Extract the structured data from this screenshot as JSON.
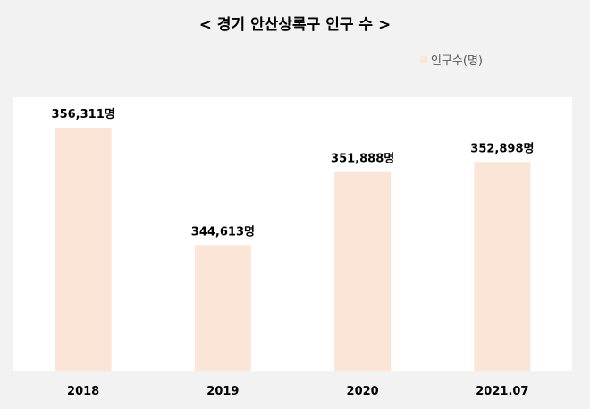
{
  "chart_data": {
    "type": "bar",
    "title": "< 경기 안산상록구 인구 수 >",
    "categories": [
      "2018",
      "2019",
      "2020",
      "2021.07"
    ],
    "series": [
      {
        "name": "인구수(명)",
        "values": [
          356311,
          344613,
          351888,
          352898
        ],
        "data_labels": [
          "356,311명",
          "344,613명",
          "351,888명",
          "352,898명"
        ]
      }
    ],
    "ylim": [
      332000,
      358000
    ],
    "grid": false,
    "legend": "top-right",
    "colors": {
      "background": "#f2f2f2",
      "plot_area": "#ffffff",
      "bar": "#fbe5d6"
    }
  }
}
